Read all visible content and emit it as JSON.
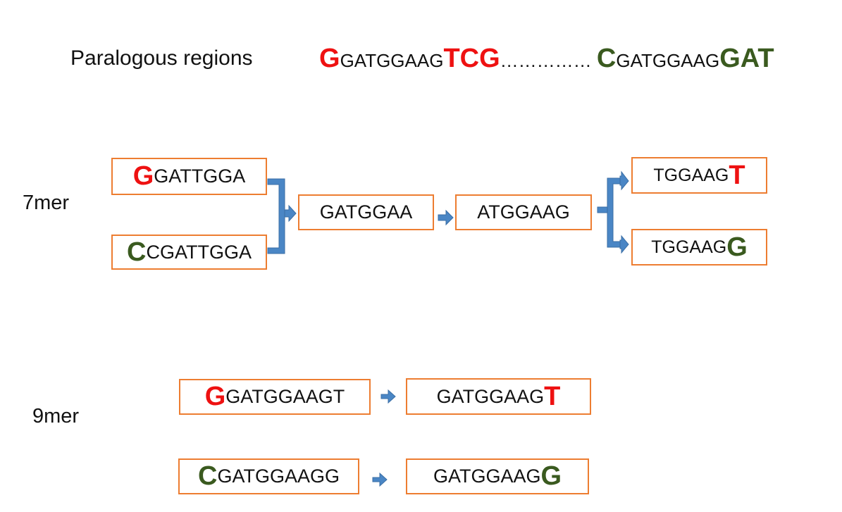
{
  "title_label": "Paralogous regions",
  "paralog": {
    "left": {
      "first": "G",
      "mid": "GATGGAAG",
      "last": "TCG"
    },
    "dots": "……………",
    "right": {
      "first": "C",
      "mid": "GATGGAAG",
      "last": "GAT"
    }
  },
  "row7": {
    "label": "7mer",
    "in_top": {
      "big": "G",
      "rest": "GATTGGA"
    },
    "in_bottom": {
      "big": "C",
      "rest": "CGATTGGA"
    },
    "mid1": "GATGGAA",
    "mid2": "ATGGAAG",
    "out_top": {
      "rest": "TGGAAG",
      "big": "T"
    },
    "out_bottom": {
      "rest": "TGGAAG",
      "big": "G"
    }
  },
  "row9": {
    "label": "9mer",
    "top_in": {
      "big": "G",
      "rest": "GATGGAAGT"
    },
    "top_out": {
      "rest": "GATGGAAG",
      "big": "T"
    },
    "bottom_in": {
      "big": "C",
      "rest": "GATGGAAGG"
    },
    "bottom_out": {
      "rest": "GATGGAAG",
      "big": "G"
    }
  },
  "colors": {
    "box_border": "#ed7d31",
    "arrow": "#4a86c5",
    "arrow_outline": "#3a6ea5",
    "red": "#ee1111",
    "green": "#3a5a1f"
  }
}
